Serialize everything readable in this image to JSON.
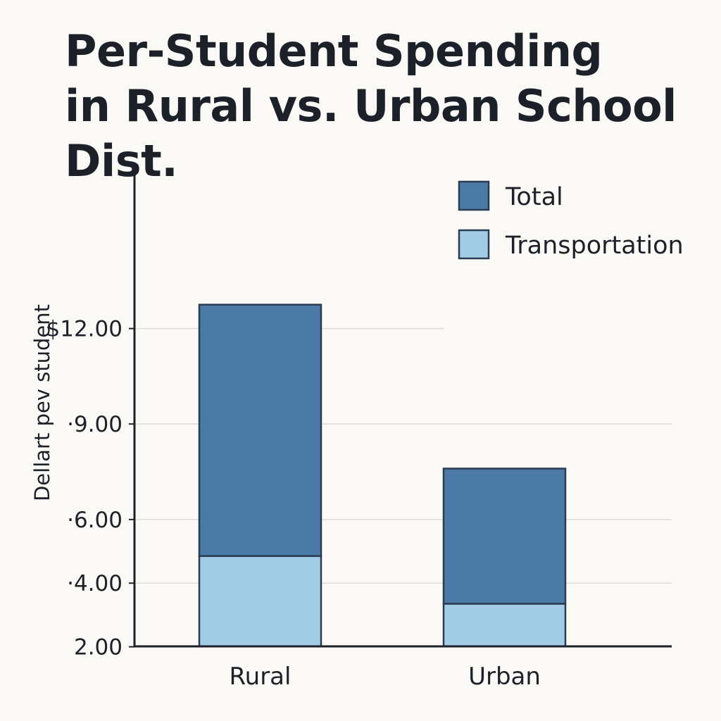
{
  "chart_data": {
    "type": "bar",
    "stacked": true,
    "title": [
      "Per-Student Spending",
      "in Rural vs. Urban School Dist."
    ],
    "ylabel": "Dellart pev student",
    "xlabel": "",
    "categories": [
      "Rural",
      "Urban"
    ],
    "series": [
      {
        "name": "Total",
        "values": [
          12.75,
          7.6
        ],
        "color": "#4a7aa5"
      },
      {
        "name": "Transportation",
        "values": [
          4.85,
          3.35
        ],
        "color": "#a2cbe6"
      }
    ],
    "y_ticks": [
      {
        "value": 2.0,
        "label": "2.00"
      },
      {
        "value": 4.0,
        "label": "·4.00"
      },
      {
        "value": 6.0,
        "label": "·6.00"
      },
      {
        "value": 9.0,
        "label": "·9.00"
      },
      {
        "value": 12.0,
        "label": "$12.00"
      }
    ],
    "ylim": [
      0,
      13.5
    ],
    "grid": true,
    "legend_position": "top-right"
  }
}
